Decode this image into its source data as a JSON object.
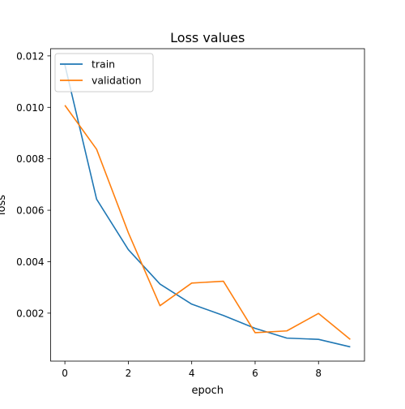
{
  "chart_data": {
    "type": "line",
    "title": "Loss values",
    "xlabel": "epoch",
    "ylabel": "loss",
    "x": [
      0,
      1,
      2,
      3,
      4,
      5,
      6,
      7,
      8,
      9
    ],
    "xlim": [
      -0.45,
      9.45
    ],
    "ylim": [
      0.000135,
      0.01228
    ],
    "xticks": [
      0,
      2,
      4,
      6,
      8
    ],
    "yticks": [
      0.002,
      0.004,
      0.006,
      0.008,
      0.01,
      0.012
    ],
    "ytick_labels": [
      "0.002",
      "0.004",
      "0.006",
      "0.008",
      "0.010",
      "0.012"
    ],
    "grid": false,
    "legend_position": "upper left",
    "series": [
      {
        "name": "train",
        "color": "#1f77b4",
        "values": [
          0.01165,
          0.00643,
          0.00447,
          0.00313,
          0.00235,
          0.00191,
          0.00141,
          0.00103,
          0.00098,
          0.00069
        ]
      },
      {
        "name": "validation",
        "color": "#ff7f0e",
        "values": [
          0.01008,
          0.00837,
          0.00513,
          0.00229,
          0.00317,
          0.00324,
          0.00124,
          0.00131,
          0.00199,
          0.00098
        ]
      }
    ]
  }
}
